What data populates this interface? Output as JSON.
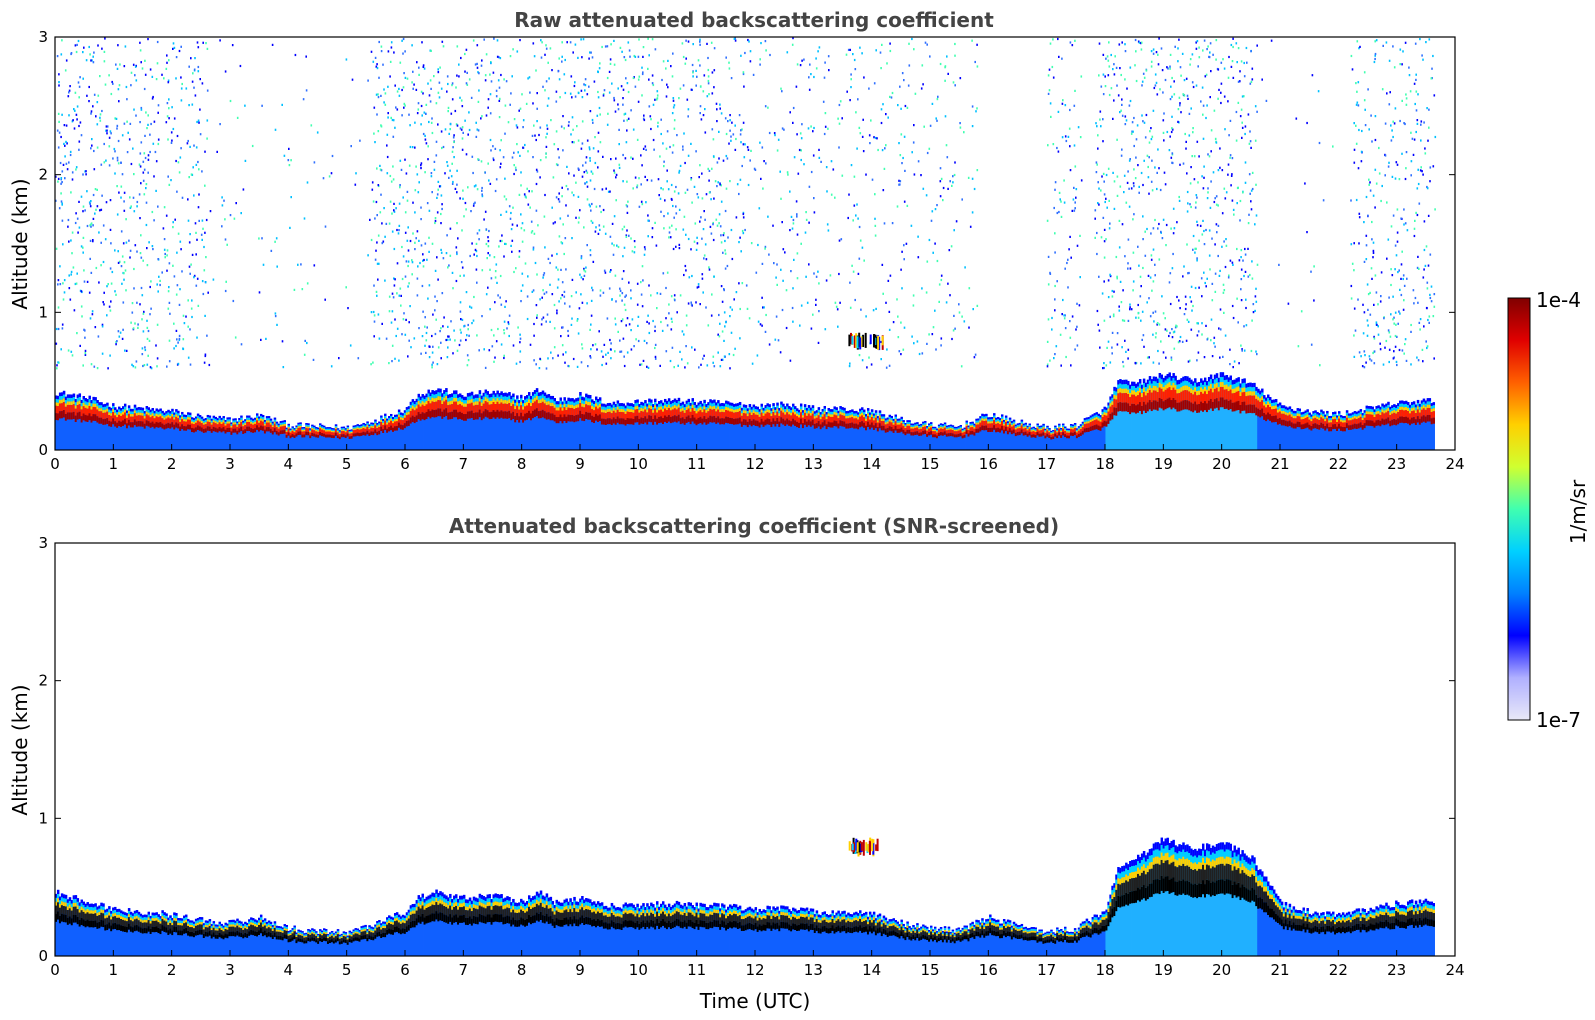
{
  "chart_data": [
    {
      "type": "heatmap",
      "title": "Raw attenuated backscattering coefficient",
      "xlabel": "",
      "ylabel": "Altitude (km)",
      "xlim": [
        0,
        24
      ],
      "ylim": [
        0,
        3
      ],
      "x_ticks": [
        "0",
        "1",
        "2",
        "3",
        "4",
        "5",
        "6",
        "7",
        "8",
        "9",
        "10",
        "11",
        "12",
        "13",
        "14",
        "15",
        "16",
        "17",
        "18",
        "19",
        "20",
        "21",
        "22",
        "23",
        "24"
      ],
      "y_ticks": [
        "0",
        "1",
        "2",
        "3"
      ],
      "data_end_hour": 23.65,
      "boundary_layer_top_km": {
        "hours": [
          0,
          0.5,
          1,
          1.5,
          2,
          2.5,
          3,
          3.5,
          4,
          4.5,
          5,
          5.5,
          6,
          6.2,
          6.5,
          7,
          7.5,
          8,
          8.3,
          8.6,
          9,
          9.5,
          10,
          10.5,
          11,
          11.5,
          12,
          12.5,
          13,
          13.5,
          14,
          14.5,
          15,
          15.5,
          16,
          16.5,
          17,
          17.5,
          18,
          18.2,
          18.5,
          19,
          19.5,
          20,
          20.5,
          21,
          21.5,
          22,
          22.5,
          23,
          23.65
        ],
        "values": [
          0.42,
          0.38,
          0.32,
          0.3,
          0.28,
          0.24,
          0.22,
          0.25,
          0.18,
          0.17,
          0.16,
          0.22,
          0.3,
          0.4,
          0.44,
          0.4,
          0.42,
          0.38,
          0.44,
          0.36,
          0.4,
          0.34,
          0.35,
          0.36,
          0.35,
          0.34,
          0.32,
          0.33,
          0.3,
          0.3,
          0.28,
          0.22,
          0.18,
          0.17,
          0.26,
          0.2,
          0.16,
          0.18,
          0.3,
          0.5,
          0.48,
          0.55,
          0.5,
          0.55,
          0.48,
          0.32,
          0.28,
          0.26,
          0.3,
          0.34,
          0.36
        ]
      },
      "cloud_patches": [
        {
          "hour_start": 13.6,
          "hour_end": 14.2,
          "alt_km_low": 0.72,
          "alt_km_high": 0.86
        }
      ]
    },
    {
      "type": "heatmap",
      "title": "Attenuated backscattering coefficient (SNR-screened)",
      "xlabel": "Time (UTC)",
      "ylabel": "Altitude (km)",
      "xlim": [
        0,
        24
      ],
      "ylim": [
        0,
        3
      ],
      "x_ticks": [
        "0",
        "1",
        "2",
        "3",
        "4",
        "5",
        "6",
        "7",
        "8",
        "9",
        "10",
        "11",
        "12",
        "13",
        "14",
        "15",
        "16",
        "17",
        "18",
        "19",
        "20",
        "21",
        "22",
        "23",
        "24"
      ],
      "y_ticks": [
        "0",
        "1",
        "2",
        "3"
      ],
      "data_end_hour": 23.65,
      "boundary_layer_top_km": {
        "hours": [
          0,
          0.5,
          1,
          1.5,
          2,
          2.5,
          3,
          3.5,
          4,
          4.5,
          5,
          5.5,
          6,
          6.2,
          6.5,
          7,
          7.5,
          8,
          8.3,
          8.6,
          9,
          9.5,
          10,
          10.5,
          11,
          11.5,
          12,
          12.5,
          13,
          13.5,
          14,
          14.5,
          15,
          15.5,
          16,
          16.5,
          17,
          17.5,
          18,
          18.2,
          18.5,
          19,
          19.5,
          20,
          20.5,
          21,
          21.5,
          22,
          22.5,
          23,
          23.65
        ],
        "values": [
          0.46,
          0.4,
          0.34,
          0.32,
          0.3,
          0.26,
          0.24,
          0.28,
          0.2,
          0.18,
          0.17,
          0.24,
          0.32,
          0.42,
          0.46,
          0.42,
          0.44,
          0.4,
          0.46,
          0.38,
          0.42,
          0.36,
          0.37,
          0.38,
          0.37,
          0.36,
          0.34,
          0.35,
          0.32,
          0.32,
          0.3,
          0.24,
          0.2,
          0.19,
          0.28,
          0.22,
          0.18,
          0.2,
          0.34,
          0.62,
          0.7,
          0.85,
          0.78,
          0.82,
          0.72,
          0.38,
          0.32,
          0.3,
          0.34,
          0.38,
          0.4
        ]
      },
      "cloud_patches": [
        {
          "hour_start": 13.6,
          "hour_end": 14.1,
          "alt_km_low": 0.72,
          "alt_km_high": 0.86
        }
      ]
    }
  ],
  "colorbar": {
    "label": "1/m/sr",
    "max_label": "1e-4",
    "min_label": "1e-7",
    "colors": [
      "#e8e8f8",
      "#b0b0ff",
      "#0000ff",
      "#0080ff",
      "#00d0ff",
      "#40ffb0",
      "#d0ff30",
      "#ffd000",
      "#ff6000",
      "#e00000",
      "#800000"
    ]
  },
  "colors": {
    "boundary_layer_raw": [
      "#0000ff",
      "#00d0ff",
      "#ffd000",
      "#ff2000",
      "#a00000"
    ],
    "boundary_layer_screened": [
      "#0000ff",
      "#00d0ff",
      "#ffd000",
      "#202020",
      "#000000"
    ],
    "noise_scatter": [
      "#0000ff",
      "#3070ff",
      "#00c0ff",
      "#40ffb0"
    ]
  }
}
